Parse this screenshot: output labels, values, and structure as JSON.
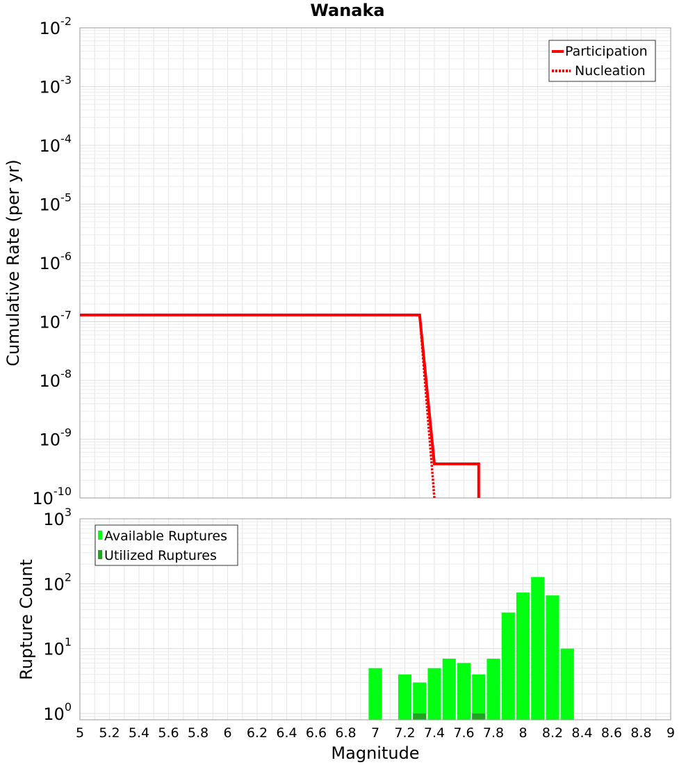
{
  "chart_data": [
    {
      "type": "line",
      "title": "Wanaka",
      "xlabel": "",
      "ylabel": "Cumulative Rate (per yr)",
      "xlim": [
        5,
        9
      ],
      "ylim": [
        1e-10,
        0.01
      ],
      "yscale": "log",
      "y_tick_labels": [
        {
          "base": "10",
          "exp": "-2",
          "value": 0.01
        },
        {
          "base": "10",
          "exp": "-3",
          "value": 0.001
        },
        {
          "base": "10",
          "exp": "-4",
          "value": 0.0001
        },
        {
          "base": "10",
          "exp": "-5",
          "value": 1e-05
        },
        {
          "base": "10",
          "exp": "-6",
          "value": 1e-06
        },
        {
          "base": "10",
          "exp": "-7",
          "value": 1e-07
        },
        {
          "base": "10",
          "exp": "-8",
          "value": 1e-08
        },
        {
          "base": "10",
          "exp": "-9",
          "value": 1e-09
        },
        {
          "base": "10",
          "exp": "-10",
          "value": 1e-10
        }
      ],
      "grid": true,
      "legend_position": "top-right",
      "series": [
        {
          "name": "Participation",
          "style": "solid",
          "color": "#ff0000",
          "x": [
            5.0,
            7.3,
            7.4,
            7.7,
            7.7
          ],
          "y": [
            1.3e-07,
            1.3e-07,
            3.8e-10,
            3.8e-10,
            1e-10
          ]
        },
        {
          "name": "Nucleation",
          "style": "dotted",
          "color": "#ff0000",
          "x": [
            5.0,
            7.3,
            7.4
          ],
          "y": [
            1.3e-07,
            1.3e-07,
            1e-10
          ]
        }
      ]
    },
    {
      "type": "bar",
      "title": "",
      "xlabel": "Magnitude",
      "ylabel": "Rupture Count",
      "xlim": [
        5,
        9
      ],
      "ylim": [
        0.8,
        1000
      ],
      "yscale": "log",
      "x_ticks": [
        "5",
        "5.2",
        "5.4",
        "5.6",
        "5.8",
        "6",
        "6.2",
        "6.4",
        "6.6",
        "6.8",
        "7",
        "7.2",
        "7.4",
        "7.6",
        "7.8",
        "8",
        "8.2",
        "8.4",
        "8.6",
        "8.8",
        "9"
      ],
      "y_tick_labels": [
        {
          "base": "10",
          "exp": "3",
          "value": 1000
        },
        {
          "base": "10",
          "exp": "2",
          "value": 100
        },
        {
          "base": "10",
          "exp": "1",
          "value": 10
        },
        {
          "base": "10",
          "exp": "0",
          "value": 1
        }
      ],
      "grid": true,
      "legend_position": "top-left",
      "series": [
        {
          "name": "Available Ruptures",
          "color": "#00ff10",
          "x": [
            7.0,
            7.2,
            7.3,
            7.4,
            7.5,
            7.6,
            7.7,
            7.8,
            7.9,
            8.0,
            8.1,
            8.2,
            8.3
          ],
          "values": [
            5,
            4,
            3,
            5,
            7,
            6,
            4,
            7,
            36,
            73,
            127,
            66,
            10
          ]
        },
        {
          "name": "Utilized Ruptures",
          "color": "#1fa51f",
          "x": [
            7.3,
            7.7
          ],
          "values": [
            1,
            1
          ]
        }
      ]
    }
  ]
}
